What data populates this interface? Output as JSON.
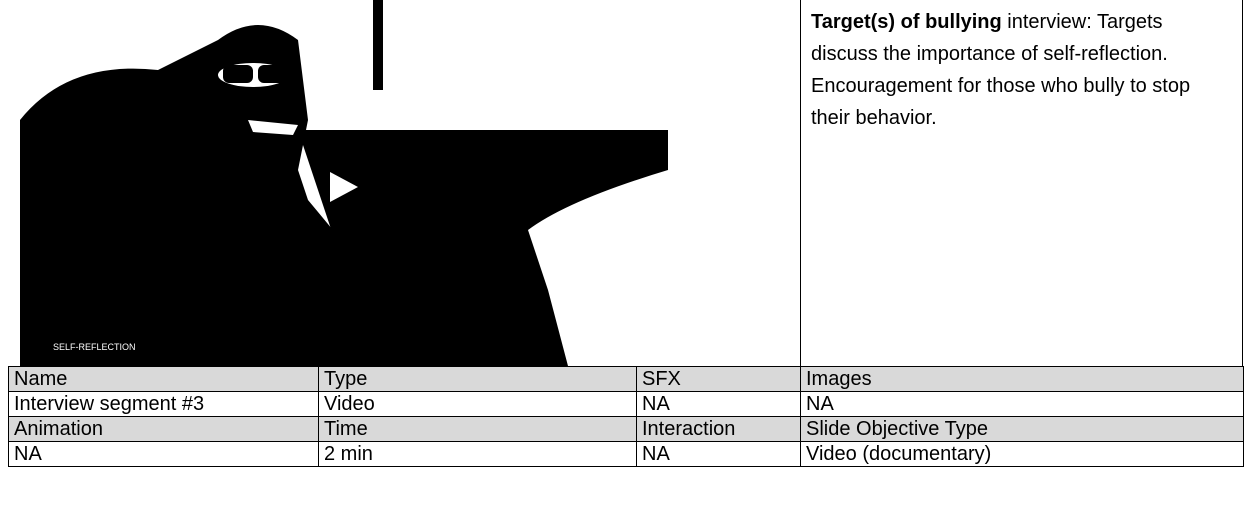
{
  "video": {
    "caption": "SELF-REFLECTION"
  },
  "description": {
    "bold": "Target(s) of bullying",
    "text": "interview: Targets discuss the importance of self-reflection. Encouragement for those who bully to stop their behavior."
  },
  "table": {
    "rows": [
      [
        "Name",
        "Type",
        "SFX",
        "Images"
      ],
      [
        "Interview segment #3",
        "Video",
        "NA",
        "NA"
      ],
      [
        "Animation",
        "Time",
        "Interaction",
        "Slide Objective Type"
      ],
      [
        "NA",
        "2 min",
        "NA",
        "Video (documentary)"
      ]
    ]
  }
}
